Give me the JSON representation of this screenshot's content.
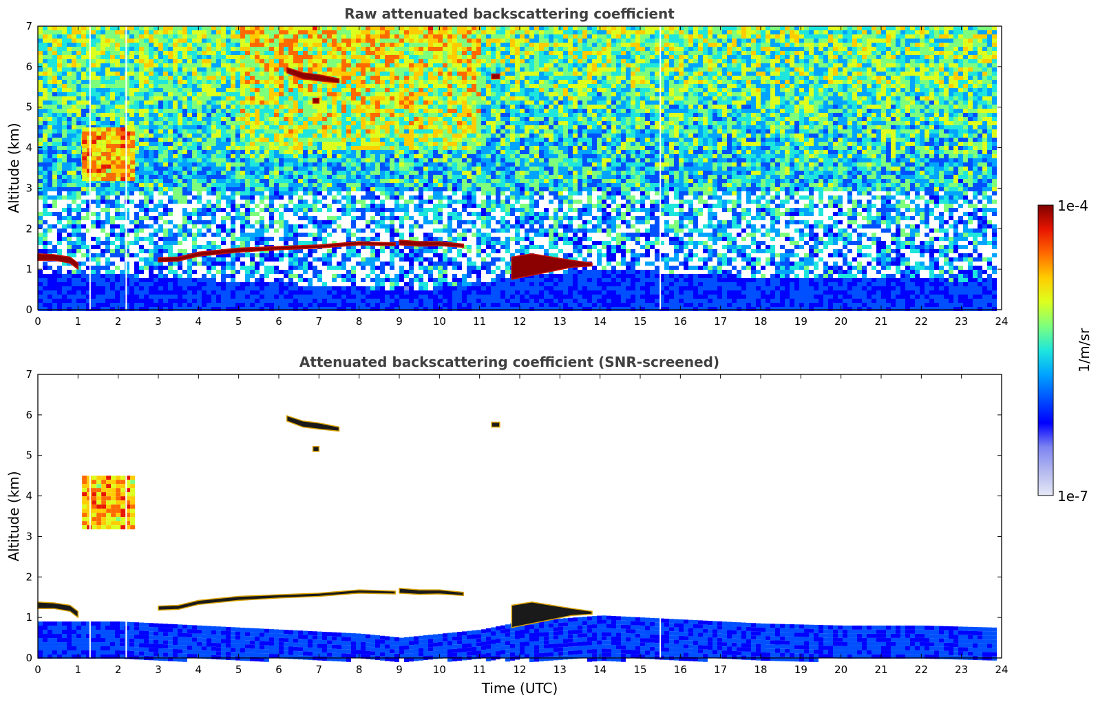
{
  "chart_data": [
    {
      "type": "heatmap",
      "title": "Raw attenuated backscattering coefficient",
      "xlabel": "",
      "ylabel": "Altitude (km)",
      "xlim": [
        0,
        24
      ],
      "ylim": [
        0,
        7
      ],
      "xticks": [
        "0",
        "1",
        "2",
        "3",
        "4",
        "5",
        "6",
        "7",
        "8",
        "9",
        "10",
        "11",
        "12",
        "13",
        "14",
        "15",
        "16",
        "17",
        "18",
        "19",
        "20",
        "21",
        "22",
        "23",
        "24"
      ],
      "yticks": [
        "0",
        "1",
        "2",
        "3",
        "4",
        "5",
        "6",
        "7"
      ],
      "data_end_hour": 23.8,
      "gaps_hour": [
        1.3,
        2.2,
        15.5
      ],
      "features": {
        "cloud_layers": [
          {
            "x": [
              0,
              0.4,
              0.8,
              1.0
            ],
            "top_km": [
              1.38,
              1.36,
              1.3,
              1.15
            ],
            "bottom_km": [
              1.22,
              1.22,
              1.15,
              1.0
            ]
          },
          {
            "x": [
              3.0,
              3.5,
              4.0,
              5.0,
              6.0,
              7.0,
              8.0,
              8.9
            ],
            "top_km": [
              1.28,
              1.3,
              1.42,
              1.52,
              1.56,
              1.6,
              1.68,
              1.65
            ],
            "bottom_km": [
              1.18,
              1.2,
              1.32,
              1.42,
              1.48,
              1.52,
              1.6,
              1.58
            ]
          },
          {
            "x": [
              9.0,
              9.5,
              10.0,
              10.6
            ],
            "top_km": [
              1.72,
              1.68,
              1.68,
              1.62
            ],
            "bottom_km": [
              1.6,
              1.57,
              1.58,
              1.54
            ]
          },
          {
            "x": [
              11.8,
              12.3,
              12.8,
              13.3,
              13.8
            ],
            "top_km": [
              1.3,
              1.38,
              1.3,
              1.22,
              1.15
            ],
            "bottom_km": [
              0.75,
              0.85,
              0.95,
              1.05,
              1.08
            ]
          },
          {
            "x": [
              6.2,
              6.6,
              7.0,
              7.5
            ],
            "top_km": [
              5.98,
              5.85,
              5.8,
              5.7
            ],
            "bottom_km": [
              5.85,
              5.7,
              5.65,
              5.6
            ]
          },
          {
            "x": [
              11.3,
              11.5
            ],
            "top_km": [
              5.82,
              5.82
            ],
            "bottom_km": [
              5.7,
              5.7
            ]
          },
          {
            "x": [
              6.85,
              7.0
            ],
            "top_km": [
              5.22,
              5.22
            ],
            "bottom_km": [
              5.1,
              5.1
            ]
          }
        ],
        "aerosol_patch": {
          "x": [
            1.1,
            2.4
          ],
          "y_km": [
            3.2,
            4.5
          ]
        },
        "boundary_layer_top_km": [
          {
            "x": 0,
            "y": 0.9
          },
          {
            "x": 2,
            "y": 0.9
          },
          {
            "x": 4,
            "y": 0.8
          },
          {
            "x": 6,
            "y": 0.7
          },
          {
            "x": 8,
            "y": 0.6
          },
          {
            "x": 9,
            "y": 0.5
          },
          {
            "x": 10,
            "y": 0.6
          },
          {
            "x": 11,
            "y": 0.7
          },
          {
            "x": 12,
            "y": 0.9
          },
          {
            "x": 14,
            "y": 1.05
          },
          {
            "x": 15,
            "y": 1.0
          },
          {
            "x": 16,
            "y": 0.95
          },
          {
            "x": 18,
            "y": 0.85
          },
          {
            "x": 20,
            "y": 0.8
          },
          {
            "x": 22,
            "y": 0.8
          },
          {
            "x": 23.8,
            "y": 0.75
          }
        ]
      }
    },
    {
      "type": "heatmap",
      "title": "Attenuated backscattering coefficient (SNR-screened)",
      "xlabel": "Time (UTC)",
      "ylabel": "Altitude (km)",
      "xlim": [
        0,
        24
      ],
      "ylim": [
        0,
        7
      ],
      "xticks": [
        "0",
        "1",
        "2",
        "3",
        "4",
        "5",
        "6",
        "7",
        "8",
        "9",
        "10",
        "11",
        "12",
        "13",
        "14",
        "15",
        "16",
        "17",
        "18",
        "19",
        "20",
        "21",
        "22",
        "23",
        "24"
      ],
      "yticks": [
        "0",
        "1",
        "2",
        "3",
        "4",
        "5",
        "6",
        "7"
      ],
      "data_end_hour": 23.8,
      "gaps_hour": [
        1.3,
        2.2,
        15.5
      ]
    }
  ],
  "colorbar": {
    "max_label": "1e-4",
    "min_label": "1e-7",
    "label": "1/m/sr",
    "colors": [
      "#e6e8f6",
      "#b4b9ef",
      "#7d84f0",
      "#0000ff",
      "#0050ff",
      "#00a4ff",
      "#1ee6dc",
      "#7dff7d",
      "#dcff1e",
      "#ffcc00",
      "#ff6a00",
      "#e81500",
      "#7f0000"
    ]
  }
}
